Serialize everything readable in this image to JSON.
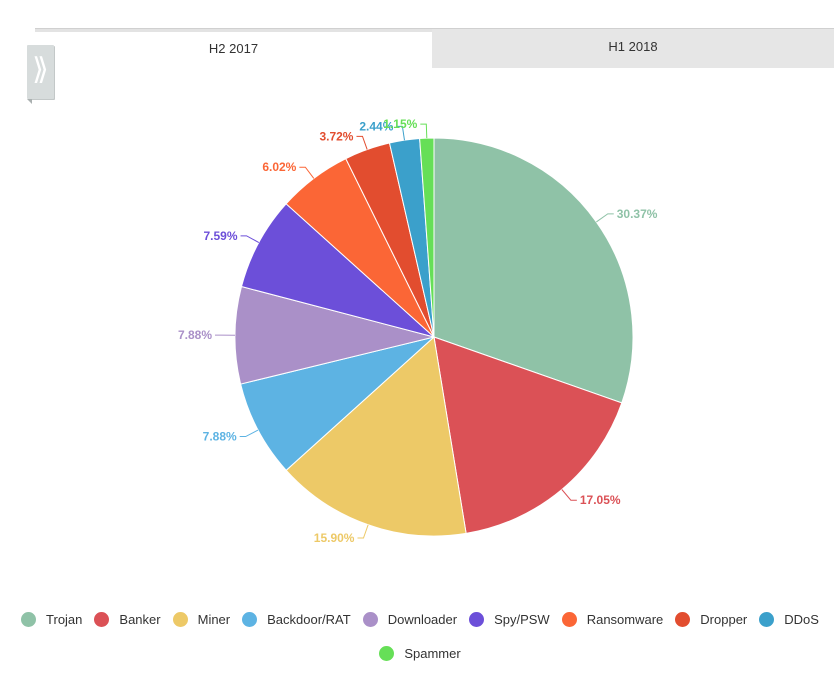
{
  "tabs": [
    {
      "label": "H2 2017",
      "active": true
    },
    {
      "label": "H1 2018",
      "active": false
    }
  ],
  "toggle": {
    "icon": "double-chevron-right-icon",
    "glyph": "⟫"
  },
  "chart_data": {
    "type": "pie",
    "title": "",
    "start_angle_deg": 0,
    "direction": "clockwise",
    "legend_placement": "bottom",
    "slices": [
      {
        "name": "Trojan",
        "value": 30.37,
        "label": "30.37%",
        "color": "#8fc2a7"
      },
      {
        "name": "Banker",
        "value": 17.05,
        "label": "17.05%",
        "color": "#db5156"
      },
      {
        "name": "Miner",
        "value": 15.9,
        "label": "15.90%",
        "color": "#edc967"
      },
      {
        "name": "Backdoor/RAT",
        "value": 7.88,
        "label": "7.88%",
        "color": "#5db3e3"
      },
      {
        "name": "Downloader",
        "value": 7.88,
        "label": "7.88%",
        "color": "#aa90c8"
      },
      {
        "name": "Spy/PSW",
        "value": 7.59,
        "label": "7.59%",
        "color": "#6c4fd9"
      },
      {
        "name": "Ransomware",
        "value": 6.02,
        "label": "6.02%",
        "color": "#fb6636"
      },
      {
        "name": "Dropper",
        "value": 3.72,
        "label": "3.72%",
        "color": "#e24d2f"
      },
      {
        "name": "DDoS",
        "value": 2.44,
        "label": "2.44%",
        "color": "#3ba0cb"
      },
      {
        "name": "Spammer",
        "value": 1.15,
        "label": "1.15%",
        "color": "#66df57"
      }
    ]
  }
}
